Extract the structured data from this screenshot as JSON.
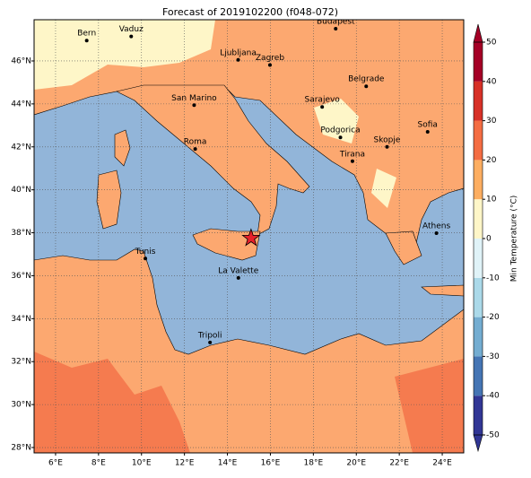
{
  "title": "Forecast of 2019102200 (f048-072)",
  "map": {
    "lon_range": [
      5,
      25
    ],
    "lat_range": [
      27.75,
      47.92
    ],
    "grid": true,
    "lon_ticks": [
      {
        "value": 6,
        "label": "6°E"
      },
      {
        "value": 8,
        "label": "8°E"
      },
      {
        "value": 10,
        "label": "10°E"
      },
      {
        "value": 12,
        "label": "12°E"
      },
      {
        "value": 14,
        "label": "14°E"
      },
      {
        "value": 16,
        "label": "16°E"
      },
      {
        "value": 18,
        "label": "18°E"
      },
      {
        "value": 20,
        "label": "20°E"
      },
      {
        "value": 22,
        "label": "22°E"
      },
      {
        "value": 24,
        "label": "24°E"
      }
    ],
    "lat_ticks": [
      {
        "value": 28,
        "label": "28°N"
      },
      {
        "value": 30,
        "label": "30°N"
      },
      {
        "value": 32,
        "label": "32°N"
      },
      {
        "value": 34,
        "label": "34°N"
      },
      {
        "value": 36,
        "label": "36°N"
      },
      {
        "value": 38,
        "label": "38°N"
      },
      {
        "value": 40,
        "label": "40°N"
      },
      {
        "value": 42,
        "label": "42°N"
      },
      {
        "value": 44,
        "label": "44°N"
      },
      {
        "value": 46,
        "label": "46°N"
      }
    ],
    "cities": [
      {
        "name": "Bern",
        "lon": 7.45,
        "lat": 46.95
      },
      {
        "name": "Vaduz",
        "lon": 9.52,
        "lat": 47.14
      },
      {
        "name": "Budapest",
        "lon": 19.04,
        "lat": 47.5
      },
      {
        "name": "Ljubljana",
        "lon": 14.5,
        "lat": 46.05
      },
      {
        "name": "Zagreb",
        "lon": 15.98,
        "lat": 45.81
      },
      {
        "name": "Belgrade",
        "lon": 20.46,
        "lat": 44.82
      },
      {
        "name": "San Marino",
        "lon": 12.45,
        "lat": 43.94
      },
      {
        "name": "Sarajevo",
        "lon": 18.41,
        "lat": 43.86
      },
      {
        "name": "Sofia",
        "lon": 23.32,
        "lat": 42.7
      },
      {
        "name": "Podgorica",
        "lon": 19.26,
        "lat": 42.44
      },
      {
        "name": "Skopje",
        "lon": 21.43,
        "lat": 42.0
      },
      {
        "name": "Roma",
        "lon": 12.5,
        "lat": 41.9
      },
      {
        "name": "Tirana",
        "lon": 19.82,
        "lat": 41.33
      },
      {
        "name": "Athens",
        "lon": 23.73,
        "lat": 37.98
      },
      {
        "name": "Tunis",
        "lon": 10.18,
        "lat": 36.8
      },
      {
        "name": "La Valette",
        "lon": 14.51,
        "lat": 35.9
      },
      {
        "name": "Tripoli",
        "lon": 13.19,
        "lat": 32.89
      }
    ],
    "marker": {
      "lon": 15.1,
      "lat": 37.75,
      "color": "#e8202a"
    }
  },
  "colorbar": {
    "label": "Min Temperature (°C)",
    "ticks": [
      -50,
      -40,
      -30,
      -20,
      -10,
      0,
      10,
      20,
      30,
      40,
      50
    ],
    "colors": [
      "#313695",
      "#4575b4",
      "#74add1",
      "#abd9e9",
      "#e0f3f8",
      "#fef6c8",
      "#fdae61",
      "#f46d43",
      "#d73027",
      "#a50026"
    ]
  }
}
